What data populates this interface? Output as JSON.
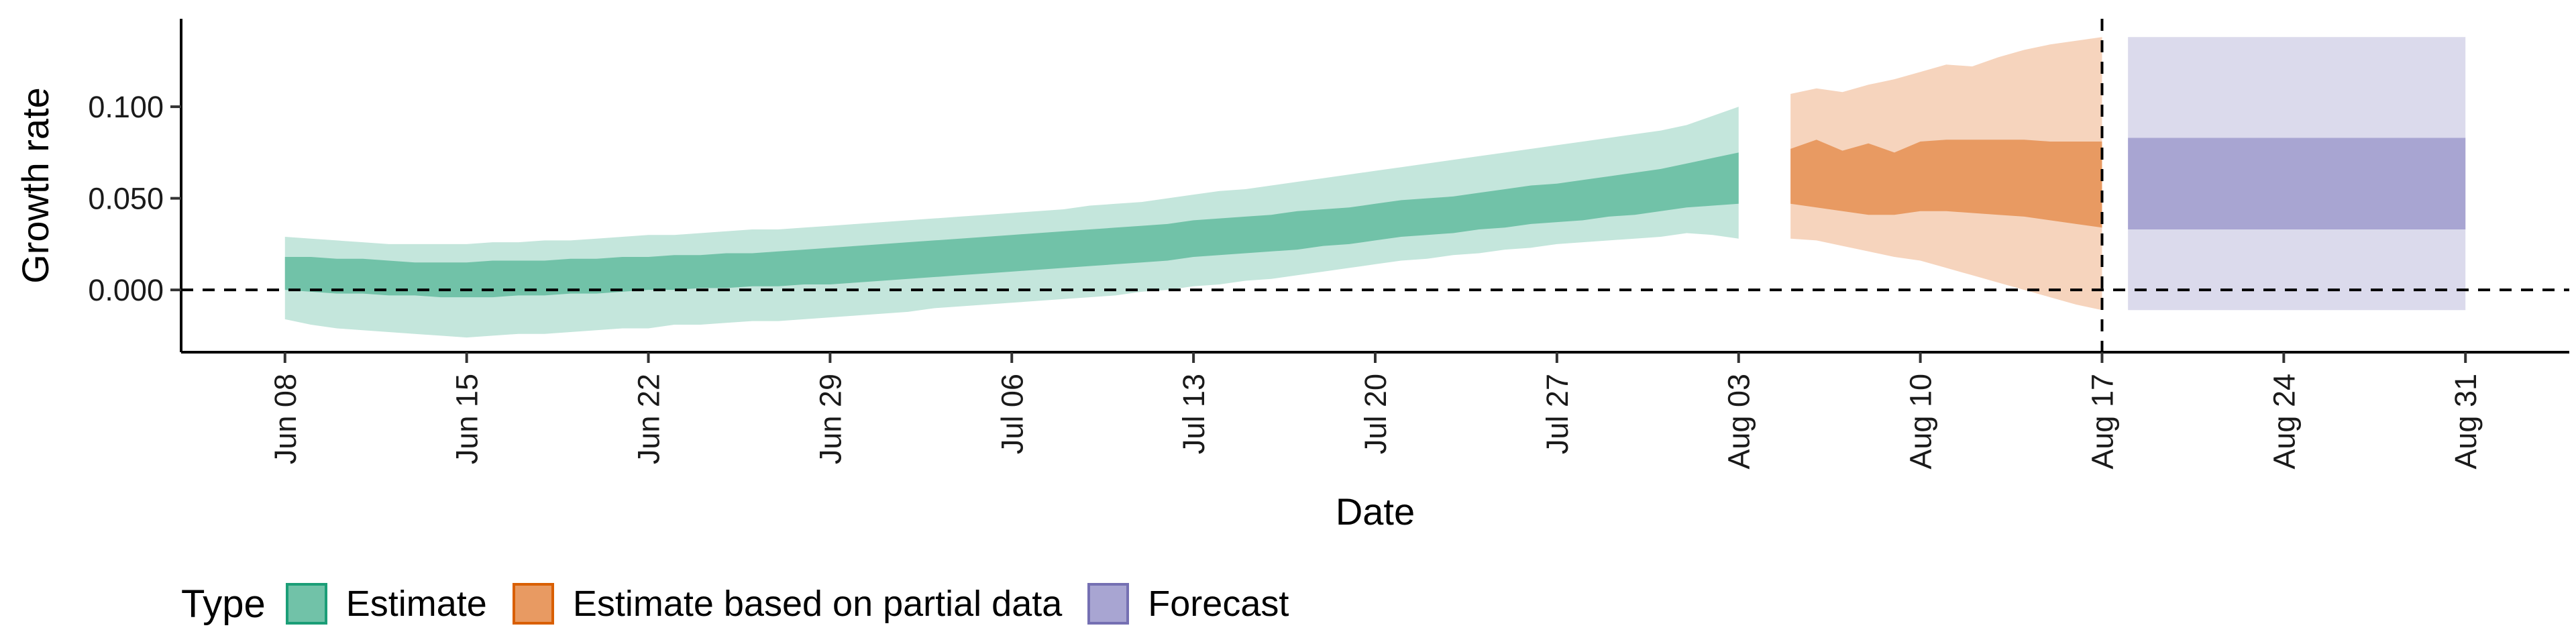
{
  "chart_data": {
    "type": "area",
    "title": "",
    "xlabel": "Date",
    "ylabel": "Growth rate",
    "x_ticks": [
      "Jun 08",
      "Jun 15",
      "Jun 22",
      "Jun 29",
      "Jul 06",
      "Jul 13",
      "Jul 20",
      "Jul 27",
      "Aug 03",
      "Aug 10",
      "Aug 17",
      "Aug 24",
      "Aug 31"
    ],
    "y_ticks": [
      "0.000",
      "0.050",
      "0.100"
    ],
    "y_tick_values": [
      0,
      0.05,
      0.1
    ],
    "ylim": [
      -0.034,
      0.148
    ],
    "xlim": [
      "2020-06-04",
      "2020-09-04"
    ],
    "grid": false,
    "reference_lines": [
      {
        "orientation": "horizontal",
        "value": 0,
        "style": "dashed"
      },
      {
        "orientation": "vertical",
        "value": "2020-08-17",
        "style": "dashed"
      }
    ],
    "legend": {
      "title": "Type",
      "position": "bottom"
    },
    "series": [
      {
        "name": "Estimate",
        "color": "#1b9e77",
        "fill": "#71c2a8",
        "fill_light": "#c4e6dc",
        "x": [
          "2020-06-08",
          "2020-06-09",
          "2020-06-10",
          "2020-06-11",
          "2020-06-12",
          "2020-06-13",
          "2020-06-14",
          "2020-06-15",
          "2020-06-16",
          "2020-06-17",
          "2020-06-18",
          "2020-06-19",
          "2020-06-20",
          "2020-06-21",
          "2020-06-22",
          "2020-06-23",
          "2020-06-24",
          "2020-06-25",
          "2020-06-26",
          "2020-06-27",
          "2020-06-28",
          "2020-06-29",
          "2020-06-30",
          "2020-07-01",
          "2020-07-02",
          "2020-07-03",
          "2020-07-04",
          "2020-07-05",
          "2020-07-06",
          "2020-07-07",
          "2020-07-08",
          "2020-07-09",
          "2020-07-10",
          "2020-07-11",
          "2020-07-12",
          "2020-07-13",
          "2020-07-14",
          "2020-07-15",
          "2020-07-16",
          "2020-07-17",
          "2020-07-18",
          "2020-07-19",
          "2020-07-20",
          "2020-07-21",
          "2020-07-22",
          "2020-07-23",
          "2020-07-24",
          "2020-07-25",
          "2020-07-26",
          "2020-07-27",
          "2020-07-28",
          "2020-07-29",
          "2020-07-30",
          "2020-07-31",
          "2020-08-01",
          "2020-08-02",
          "2020-08-03"
        ],
        "lower90": [
          -0.016,
          -0.019,
          -0.021,
          -0.022,
          -0.023,
          -0.024,
          -0.025,
          -0.026,
          -0.025,
          -0.024,
          -0.024,
          -0.023,
          -0.022,
          -0.021,
          -0.021,
          -0.019,
          -0.019,
          -0.018,
          -0.017,
          -0.017,
          -0.016,
          -0.015,
          -0.014,
          -0.013,
          -0.012,
          -0.01,
          -0.009,
          -0.008,
          -0.007,
          -0.006,
          -0.005,
          -0.004,
          -0.003,
          -0.001,
          0.0,
          0.002,
          0.003,
          0.005,
          0.006,
          0.008,
          0.01,
          0.012,
          0.014,
          0.016,
          0.017,
          0.019,
          0.02,
          0.022,
          0.023,
          0.025,
          0.026,
          0.027,
          0.028,
          0.029,
          0.031,
          0.03,
          0.028
        ],
        "lower50": [
          0.0,
          -0.001,
          -0.002,
          -0.002,
          -0.003,
          -0.003,
          -0.004,
          -0.004,
          -0.004,
          -0.003,
          -0.003,
          -0.002,
          -0.002,
          -0.001,
          0.0,
          0.0,
          0.001,
          0.001,
          0.002,
          0.002,
          0.003,
          0.003,
          0.004,
          0.005,
          0.006,
          0.007,
          0.008,
          0.009,
          0.01,
          0.011,
          0.012,
          0.013,
          0.014,
          0.015,
          0.016,
          0.018,
          0.019,
          0.02,
          0.021,
          0.022,
          0.024,
          0.025,
          0.027,
          0.029,
          0.03,
          0.031,
          0.033,
          0.034,
          0.036,
          0.037,
          0.038,
          0.04,
          0.041,
          0.043,
          0.045,
          0.046,
          0.047
        ],
        "median": [
          0.009,
          0.008,
          0.008,
          0.007,
          0.006,
          0.005,
          0.005,
          0.005,
          0.006,
          0.006,
          0.006,
          0.007,
          0.007,
          0.008,
          0.009,
          0.009,
          0.01,
          0.01,
          0.011,
          0.011,
          0.012,
          0.013,
          0.014,
          0.015,
          0.016,
          0.017,
          0.018,
          0.019,
          0.02,
          0.021,
          0.022,
          0.023,
          0.024,
          0.025,
          0.026,
          0.028,
          0.029,
          0.03,
          0.031,
          0.032,
          0.034,
          0.035,
          0.037,
          0.039,
          0.04,
          0.041,
          0.043,
          0.044,
          0.046,
          0.047,
          0.049,
          0.051,
          0.052,
          0.054,
          0.056,
          0.058,
          0.061
        ],
        "upper50": [
          0.018,
          0.018,
          0.017,
          0.017,
          0.016,
          0.015,
          0.015,
          0.015,
          0.016,
          0.016,
          0.016,
          0.017,
          0.017,
          0.018,
          0.018,
          0.019,
          0.019,
          0.02,
          0.02,
          0.021,
          0.022,
          0.023,
          0.024,
          0.025,
          0.026,
          0.027,
          0.028,
          0.029,
          0.03,
          0.031,
          0.032,
          0.033,
          0.034,
          0.035,
          0.036,
          0.038,
          0.039,
          0.04,
          0.041,
          0.043,
          0.044,
          0.045,
          0.047,
          0.049,
          0.05,
          0.051,
          0.053,
          0.055,
          0.057,
          0.058,
          0.06,
          0.062,
          0.064,
          0.066,
          0.069,
          0.072,
          0.075
        ],
        "upper90": [
          0.029,
          0.028,
          0.027,
          0.026,
          0.025,
          0.025,
          0.025,
          0.025,
          0.026,
          0.026,
          0.027,
          0.027,
          0.028,
          0.029,
          0.03,
          0.03,
          0.031,
          0.032,
          0.033,
          0.033,
          0.034,
          0.035,
          0.036,
          0.037,
          0.038,
          0.039,
          0.04,
          0.041,
          0.042,
          0.043,
          0.044,
          0.046,
          0.047,
          0.048,
          0.05,
          0.052,
          0.054,
          0.055,
          0.057,
          0.059,
          0.061,
          0.063,
          0.065,
          0.067,
          0.069,
          0.071,
          0.073,
          0.075,
          0.077,
          0.079,
          0.081,
          0.083,
          0.085,
          0.087,
          0.09,
          0.095,
          0.1
        ]
      },
      {
        "name": "Estimate based on partial data",
        "color": "#d95f02",
        "fill": "#e89a62",
        "fill_light": "#f6d4bd",
        "x": [
          "2020-08-05",
          "2020-08-06",
          "2020-08-07",
          "2020-08-08",
          "2020-08-09",
          "2020-08-10",
          "2020-08-11",
          "2020-08-12",
          "2020-08-13",
          "2020-08-14",
          "2020-08-15",
          "2020-08-16",
          "2020-08-17"
        ],
        "lower90": [
          0.028,
          0.027,
          0.024,
          0.021,
          0.018,
          0.016,
          0.012,
          0.008,
          0.004,
          0.0,
          -0.004,
          -0.008,
          -0.011
        ],
        "lower50": [
          0.047,
          0.045,
          0.043,
          0.041,
          0.041,
          0.043,
          0.043,
          0.042,
          0.041,
          0.04,
          0.038,
          0.036,
          0.034
        ],
        "median": [
          0.062,
          0.066,
          0.06,
          0.063,
          0.058,
          0.062,
          0.06,
          0.061,
          0.061,
          0.06,
          0.059,
          0.058,
          0.058
        ],
        "upper50": [
          0.077,
          0.082,
          0.076,
          0.08,
          0.075,
          0.081,
          0.082,
          0.082,
          0.082,
          0.082,
          0.081,
          0.081,
          0.081
        ],
        "upper90": [
          0.107,
          0.11,
          0.108,
          0.112,
          0.115,
          0.119,
          0.123,
          0.122,
          0.127,
          0.131,
          0.134,
          0.136,
          0.138
        ]
      },
      {
        "name": "Forecast",
        "color": "#7570b3",
        "fill": "#a8a5d2",
        "fill_light": "#dbdaec",
        "x": [
          "2020-08-18",
          "2020-08-31"
        ],
        "lower90": [
          -0.011,
          -0.011
        ],
        "lower50": [
          0.033,
          0.033
        ],
        "median": [
          0.058,
          0.058
        ],
        "upper50": [
          0.083,
          0.083
        ],
        "upper90": [
          0.138,
          0.138
        ]
      }
    ]
  }
}
